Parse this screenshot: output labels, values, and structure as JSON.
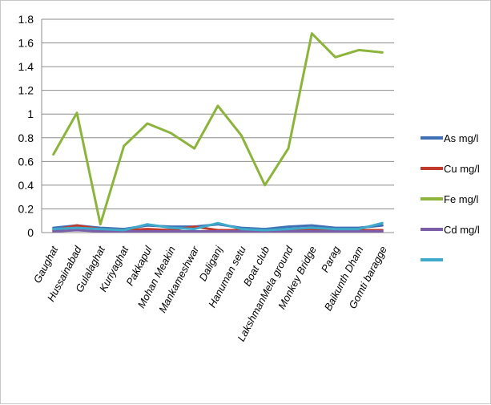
{
  "chart_data": {
    "type": "line",
    "title": "",
    "xlabel": "",
    "ylabel": "",
    "ylim": [
      0,
      1.8
    ],
    "yticks": [
      "0",
      "0.2",
      "0.4",
      "0.6",
      "0.8",
      "1",
      "1.2",
      "1.4",
      "1.6",
      "1.8"
    ],
    "grid": "horizontal",
    "legend_position": "right",
    "categories": [
      "Gaughat",
      "Hussainabad",
      "Gulalaghat",
      "Kuriyaghat",
      "Pakkapul",
      "Mohan Meakin",
      "Mankameshwar",
      "Daliganj",
      "Hanuman setu",
      "Boat club",
      "LakshmanMela ground",
      "Monkey Bridge",
      "Parag",
      "Baikunth Dham",
      "Gomti baragge"
    ],
    "series": [
      {
        "name": "As mg/l",
        "color": "#3f6fb5",
        "values": [
          0.04,
          0.06,
          0.04,
          0.03,
          0.06,
          0.05,
          0.05,
          0.07,
          0.04,
          0.03,
          0.05,
          0.06,
          0.04,
          0.04,
          0.06
        ]
      },
      {
        "name": "Cu mg/l",
        "color": "#c0392b",
        "values": [
          0.02,
          0.06,
          0.03,
          0.02,
          0.03,
          0.02,
          0.05,
          0.02,
          0.02,
          0.02,
          0.02,
          0.02,
          0.02,
          0.02,
          0.02
        ]
      },
      {
        "name": "Fe mg/l",
        "color": "#8cb43c",
        "values": [
          0.66,
          1.01,
          0.07,
          0.73,
          0.92,
          0.84,
          0.71,
          1.07,
          0.82,
          0.4,
          0.71,
          1.68,
          1.48,
          1.54,
          1.52
        ]
      },
      {
        "name": "Cd mg/l",
        "color": "#7b5ea7",
        "values": [
          0.01,
          0.02,
          0.01,
          0.01,
          0.01,
          0.01,
          0.01,
          0.01,
          0.01,
          0.01,
          0.01,
          0.01,
          0.01,
          0.01,
          0.01
        ]
      },
      {
        "name": "",
        "color": "#3fa9c9",
        "values": [
          0.03,
          0.04,
          0.03,
          0.02,
          0.07,
          0.04,
          0.03,
          0.08,
          0.03,
          0.02,
          0.03,
          0.04,
          0.03,
          0.03,
          0.08
        ]
      }
    ]
  }
}
